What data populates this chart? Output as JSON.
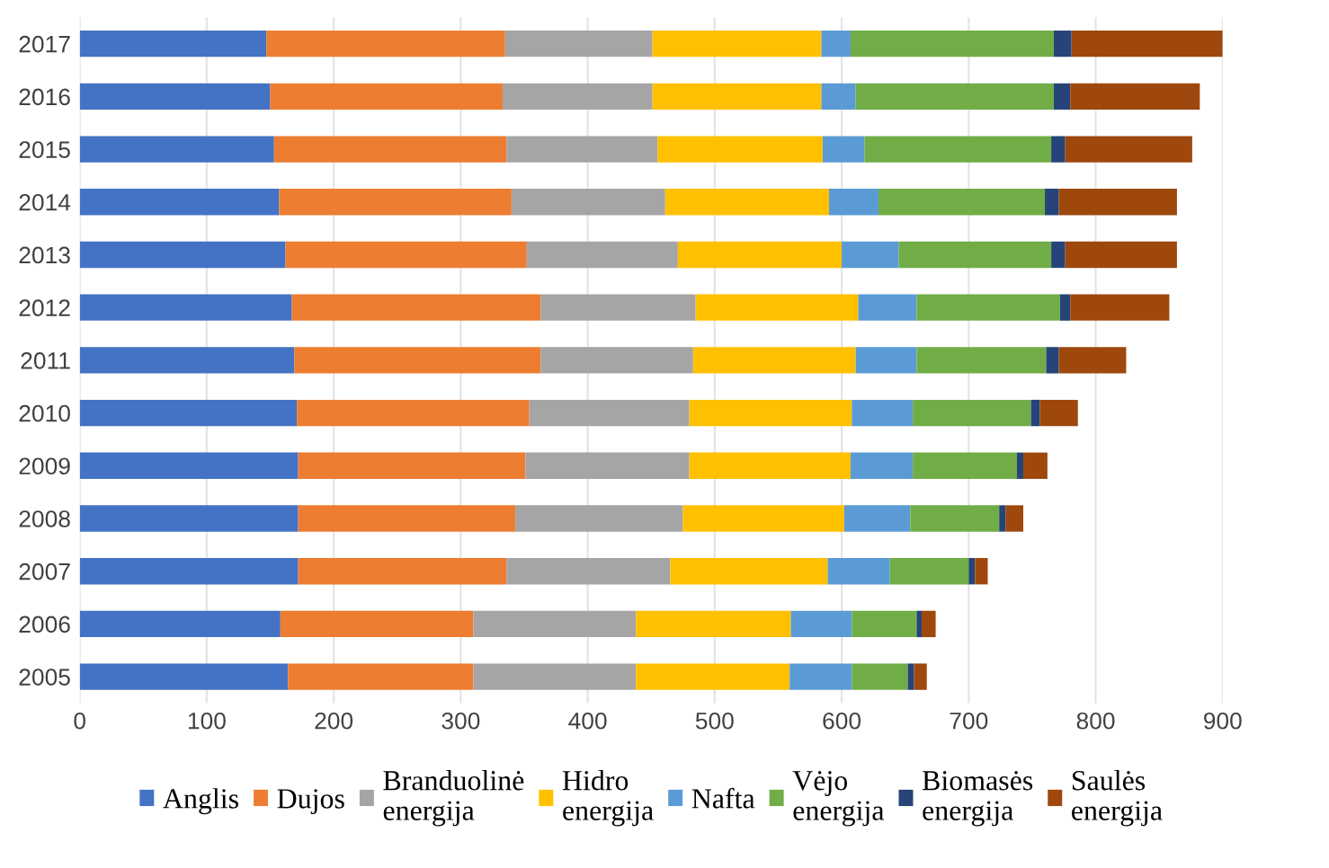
{
  "chart_data": {
    "type": "bar",
    "orientation": "horizontal",
    "stacked": true,
    "categories": [
      "2017",
      "2016",
      "2015",
      "2014",
      "2013",
      "2012",
      "2011",
      "2010",
      "2009",
      "2008",
      "2007",
      "2006",
      "2005"
    ],
    "series": [
      {
        "name": "Anglis",
        "color": "#4472c4",
        "values": [
          147,
          150,
          153,
          157,
          162,
          167,
          169,
          171,
          172,
          172,
          172,
          158,
          164
        ]
      },
      {
        "name": "Dujos",
        "color": "#ed7d31",
        "values": [
          188,
          183,
          183,
          183,
          190,
          196,
          194,
          183,
          179,
          171,
          164,
          152,
          146
        ]
      },
      {
        "name": "Branduolinė\nenergija",
        "color": "#a5a5a5",
        "values": [
          116,
          118,
          119,
          121,
          119,
          122,
          120,
          126,
          129,
          132,
          129,
          128,
          128
        ]
      },
      {
        "name": "Hidro\nenergija",
        "color": "#ffc000",
        "values": [
          133,
          133,
          130,
          129,
          129,
          128,
          128,
          128,
          127,
          127,
          124,
          122,
          121
        ]
      },
      {
        "name": "Nafta",
        "color": "#5b9bd5",
        "values": [
          23,
          27,
          33,
          39,
          45,
          46,
          48,
          48,
          49,
          52,
          49,
          48,
          49
        ]
      },
      {
        "name": "Vėjo\nenergija",
        "color": "#70ad47",
        "values": [
          160,
          156,
          147,
          131,
          120,
          113,
          102,
          93,
          82,
          70,
          62,
          51,
          44
        ]
      },
      {
        "name": "Biomasės\nenergija",
        "color": "#264478",
        "values": [
          14,
          13,
          11,
          11,
          11,
          8,
          10,
          7,
          5,
          5,
          5,
          4,
          5
        ]
      },
      {
        "name": "Saulės\nenergija",
        "color": "#9e480e",
        "values": [
          119,
          102,
          100,
          93,
          88,
          78,
          53,
          30,
          19,
          14,
          10,
          11,
          10
        ]
      }
    ],
    "xlim": [
      0,
      900
    ],
    "xticks": [
      0,
      100,
      200,
      300,
      400,
      500,
      600,
      700,
      800,
      900
    ],
    "grid": "x",
    "legend": "bottom"
  }
}
